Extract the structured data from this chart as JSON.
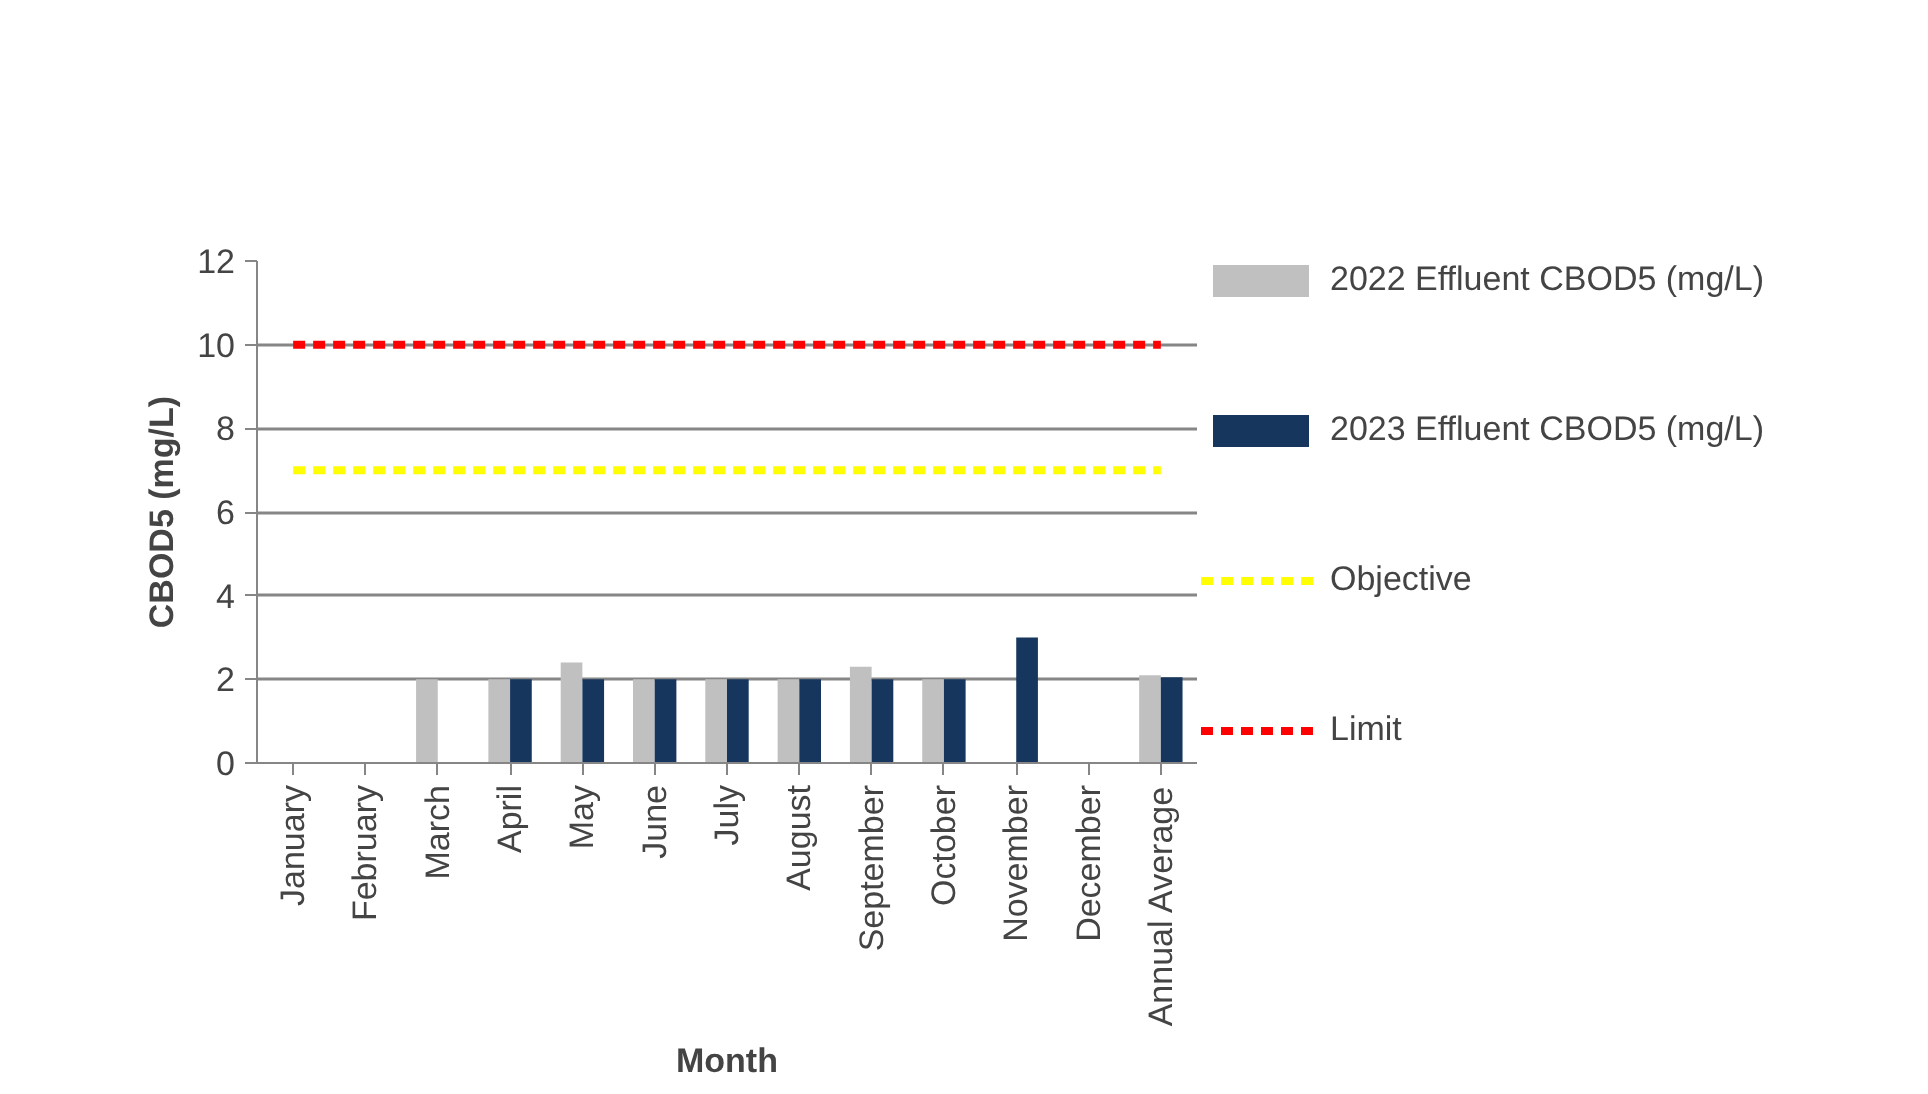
{
  "chart_data": {
    "type": "bar",
    "xlabel": "Month",
    "ylabel": "CBOD5 (mg/L)",
    "categories": [
      "January",
      "February",
      "March",
      "April",
      "May",
      "June",
      "July",
      "August",
      "September",
      "October",
      "November",
      "December",
      "Annual Average"
    ],
    "series": [
      {
        "name": "2022 Effluent CBOD5 (mg/L)",
        "color": "#c0c0c0",
        "values": [
          null,
          null,
          2,
          2,
          2.4,
          2,
          2,
          2,
          2.3,
          2,
          null,
          null,
          2.1
        ]
      },
      {
        "name": "2023 Effluent CBOD5 (mg/L)",
        "color": "#17365d",
        "values": [
          null,
          null,
          null,
          2,
          2,
          2,
          2,
          2,
          2,
          2,
          3,
          null,
          2.05
        ]
      },
      {
        "name": "Objective",
        "type": "line",
        "line_style": "dashed",
        "color": "#ffff00",
        "values": [
          7,
          7,
          7,
          7,
          7,
          7,
          7,
          7,
          7,
          7,
          7,
          7,
          7
        ]
      },
      {
        "name": "Limit",
        "type": "line",
        "line_style": "dashed",
        "color": "#ff0000",
        "values": [
          10,
          10,
          10,
          10,
          10,
          10,
          10,
          10,
          10,
          10,
          10,
          10,
          10
        ]
      }
    ],
    "ylim": [
      0,
      12
    ],
    "yticks": [
      0,
      2,
      4,
      6,
      8,
      10,
      12
    ],
    "grid": "y",
    "legend": "right"
  }
}
